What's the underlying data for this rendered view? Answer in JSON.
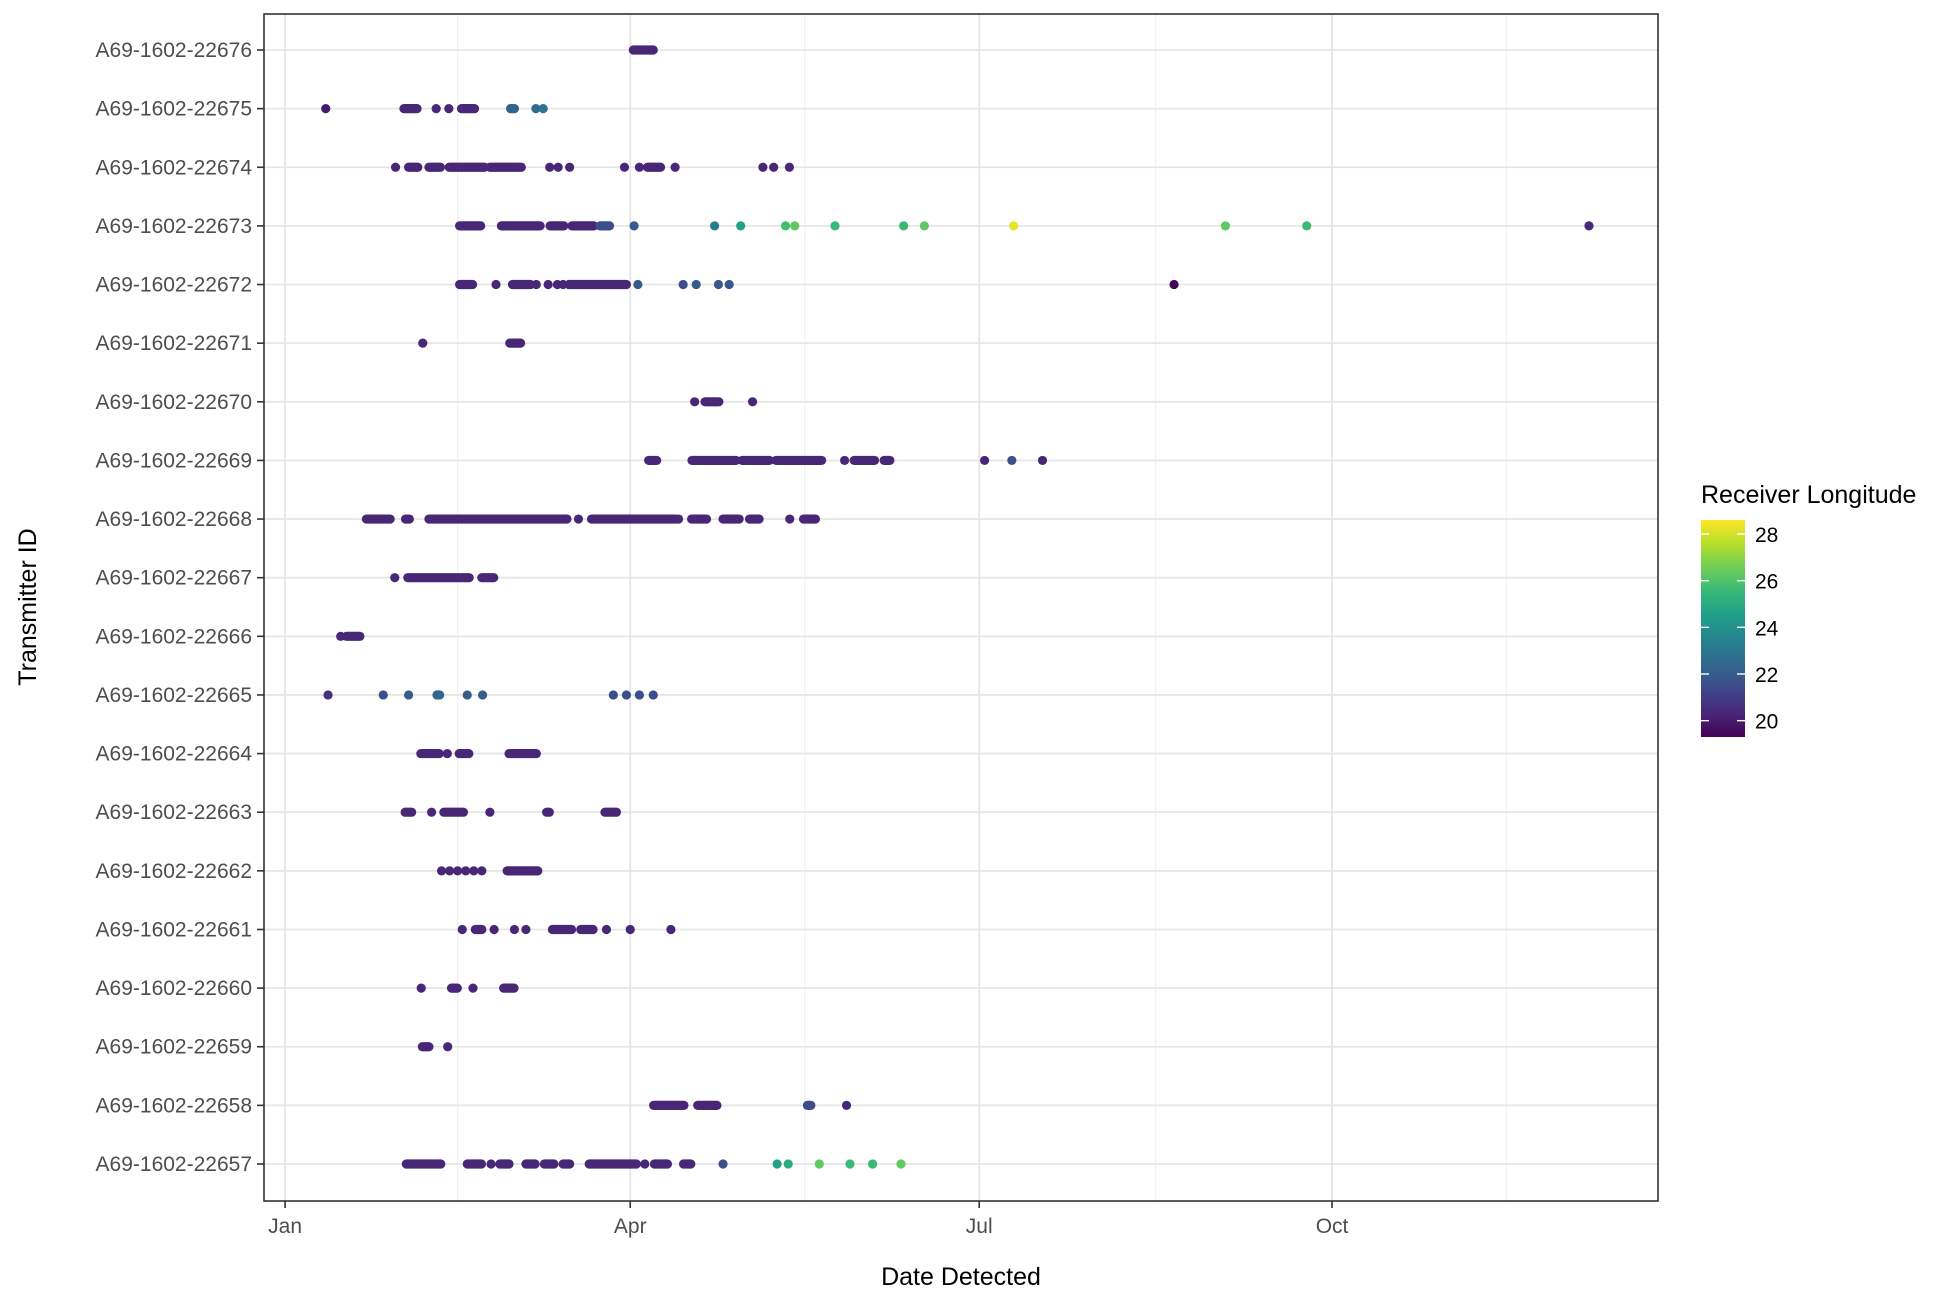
{
  "chart_data": {
    "type": "scatter",
    "xlabel": "Date Detected",
    "ylabel": "Transmitter ID",
    "x_ticks": [
      {
        "label": "Jan",
        "day": 0
      },
      {
        "label": "Apr",
        "day": 90
      },
      {
        "label": "Jul",
        "day": 181
      },
      {
        "label": "Oct",
        "day": 273
      }
    ],
    "x_minor_days": [
      45,
      135.5,
      227,
      318.5
    ],
    "xlim_days": [
      -5.5,
      358
    ],
    "categories": [
      "A69-1602-22676",
      "A69-1602-22675",
      "A69-1602-22674",
      "A69-1602-22673",
      "A69-1602-22672",
      "A69-1602-22671",
      "A69-1602-22670",
      "A69-1602-22669",
      "A69-1602-22668",
      "A69-1602-22667",
      "A69-1602-22666",
      "A69-1602-22665",
      "A69-1602-22664",
      "A69-1602-22663",
      "A69-1602-22662",
      "A69-1602-22661",
      "A69-1602-22660",
      "A69-1602-22659",
      "A69-1602-22658",
      "A69-1602-22657"
    ],
    "legend": {
      "title": "Receiver Longitude",
      "position": "right",
      "ticks": [
        20,
        22,
        24,
        26,
        28
      ],
      "range": [
        19.3,
        28.6
      ],
      "colormap": "viridis"
    },
    "grid": true,
    "points": [
      {
        "id": "A69-1602-22676",
        "pts": [
          [
            96,
            90.8,
            20.3
          ]
        ]
      },
      {
        "id": "A69-1602-22675",
        "pts": [
          [
            10.6,
            20.0
          ],
          [
            31,
            34.4,
            20.3
          ],
          [
            39.4,
            20.3
          ],
          [
            42.7,
            20.3
          ],
          [
            46,
            49.4,
            20.3
          ],
          [
            58.8,
            59.8,
            22.3
          ],
          [
            65.4,
            22.6
          ],
          [
            67.3,
            22.8
          ]
        ]
      },
      {
        "id": "A69-1602-22674",
        "pts": [
          [
            28.8,
            20.3
          ],
          [
            32.2,
            34.6,
            20.3
          ],
          [
            37.5,
            40.5,
            20.3
          ],
          [
            42.8,
            52.0,
            20.3
          ],
          [
            53.4,
            61.6,
            20.3
          ],
          [
            69.0,
            20.3
          ],
          [
            71.2,
            20.3
          ],
          [
            74.2,
            20.3
          ],
          [
            88.5,
            20.3
          ],
          [
            92.4,
            20.3
          ],
          [
            94.5,
            97.9,
            20.3
          ],
          [
            101.7,
            20.3
          ],
          [
            124.6,
            20.3
          ],
          [
            127.4,
            20.3
          ],
          [
            131.5,
            20.3
          ]
        ]
      },
      {
        "id": "A69-1602-22673",
        "pts": [
          [
            45.5,
            51.0,
            20.3
          ],
          [
            56.4,
            66.5,
            20.3
          ],
          [
            69.1,
            72.7,
            20.3
          ],
          [
            74.8,
            80.5,
            20.3
          ],
          [
            82.1,
            84.6,
            21.6
          ],
          [
            91.0,
            22.0
          ],
          [
            112.0,
            23.2
          ],
          [
            118.8,
            24.6
          ],
          [
            130.5,
            25.8
          ],
          [
            132.9,
            26.3
          ],
          [
            143.4,
            25.6
          ],
          [
            161.3,
            25.6
          ],
          [
            166.7,
            26.3
          ],
          [
            190.0,
            28.3
          ],
          [
            245.2,
            26.3
          ],
          [
            266.4,
            25.6
          ],
          [
            340.0,
            20.3
          ]
        ]
      },
      {
        "id": "A69-1602-22672",
        "pts": [
          [
            45.5,
            48.9,
            20.3
          ],
          [
            55.0,
            20.3
          ],
          [
            59.3,
            64.0,
            20.3
          ],
          [
            65.5,
            20.3
          ],
          [
            68.6,
            20.3
          ],
          [
            71.0,
            20.3
          ],
          [
            72.5,
            20.3
          ],
          [
            74.0,
            89.0,
            20.3
          ],
          [
            92.0,
            22.0
          ],
          [
            103.8,
            21.6
          ],
          [
            107.2,
            22.0
          ],
          [
            113.0,
            21.9
          ],
          [
            115.8,
            21.9
          ],
          [
            231.8,
            19.4
          ]
        ]
      },
      {
        "id": "A69-1602-22671",
        "pts": [
          [
            35.9,
            20.3
          ],
          [
            58.6,
            61.4,
            20.3
          ]
        ]
      },
      {
        "id": "A69-1602-22670",
        "pts": [
          [
            106.8,
            20.3
          ],
          [
            109.5,
            113.1,
            20.3
          ],
          [
            121.9,
            20.3
          ]
        ]
      },
      {
        "id": "A69-1602-22669",
        "pts": [
          [
            94.8,
            96.9,
            20.3
          ],
          [
            106.1,
            117.6,
            20.3
          ],
          [
            119.2,
            126.3,
            20.3
          ],
          [
            128.0,
            139.9,
            20.3
          ],
          [
            145.9,
            20.3
          ],
          [
            148.4,
            153.7,
            20.3
          ],
          [
            156.2,
            157.7,
            20.3
          ],
          [
            182.4,
            20.3
          ],
          [
            189.5,
            21.6
          ],
          [
            197.5,
            20.3
          ]
        ]
      },
      {
        "id": "A69-1602-22668",
        "pts": [
          [
            21.2,
            27.4,
            20.3
          ],
          [
            31.4,
            32.4,
            20.3
          ],
          [
            37.5,
            73.5,
            20.3
          ],
          [
            76.5,
            20.3
          ],
          [
            79.9,
            101.9,
            20.3
          ],
          [
            102.6,
            20.3
          ],
          [
            106.0,
            109.9,
            20.3
          ],
          [
            114.2,
            118.4,
            20.3
          ],
          [
            121.1,
            123.6,
            20.3
          ],
          [
            131.6,
            20.3
          ],
          [
            135.2,
            138.3,
            20.3
          ]
        ]
      },
      {
        "id": "A69-1602-22667",
        "pts": [
          [
            28.6,
            20.3
          ],
          [
            32.0,
            48.0,
            20.3
          ],
          [
            51.3,
            54.4,
            20.3
          ]
        ]
      },
      {
        "id": "A69-1602-22666",
        "pts": [
          [
            14.5,
            20.3
          ],
          [
            16,
            19.5,
            20.3
          ]
        ]
      },
      {
        "id": "A69-1602-22665",
        "pts": [
          [
            11.2,
            20.6
          ],
          [
            25.6,
            21.6
          ],
          [
            32.2,
            22.0
          ],
          [
            39.6,
            40.3,
            22.3
          ],
          [
            47.5,
            22.0
          ],
          [
            51.5,
            22.0
          ],
          [
            85.6,
            21.6
          ],
          [
            89.0,
            21.6
          ],
          [
            92.4,
            21.6
          ],
          [
            96.0,
            21.6
          ]
        ]
      },
      {
        "id": "A69-1602-22664",
        "pts": [
          [
            35.4,
            40.2,
            20.3
          ],
          [
            42.3,
            20.3
          ],
          [
            45.4,
            47.9,
            20.3
          ],
          [
            58.4,
            65.5,
            20.3
          ]
        ]
      },
      {
        "id": "A69-1602-22663",
        "pts": [
          [
            31.3,
            33.0,
            20.3
          ],
          [
            38.2,
            20.3
          ],
          [
            41.4,
            46.5,
            20.3
          ],
          [
            53.4,
            20.3
          ],
          [
            68.2,
            68.9,
            20.3
          ],
          [
            83.4,
            86.4,
            20.3
          ]
        ]
      },
      {
        "id": "A69-1602-22662",
        "pts": [
          [
            40.8,
            20.3
          ],
          [
            42.9,
            20.3
          ],
          [
            45.0,
            20.3
          ],
          [
            47.1,
            20.3
          ],
          [
            49.2,
            20.3
          ],
          [
            51.3,
            20.3
          ],
          [
            57.9,
            65.9,
            20.3
          ]
        ]
      },
      {
        "id": "A69-1602-22661",
        "pts": [
          [
            46.2,
            20.3
          ],
          [
            49.6,
            51.3,
            20.3
          ],
          [
            54.5,
            20.3
          ],
          [
            59.8,
            20.3
          ],
          [
            62.8,
            20.3
          ],
          [
            69.7,
            74.7,
            20.3
          ],
          [
            77.1,
            80.3,
            20.3
          ],
          [
            83.8,
            20.3
          ],
          [
            90.0,
            20.3
          ],
          [
            100.6,
            20.3
          ]
        ]
      },
      {
        "id": "A69-1602-22660",
        "pts": [
          [
            35.5,
            20.3
          ],
          [
            43.4,
            44.9,
            20.3
          ],
          [
            49.0,
            20.3
          ],
          [
            57.0,
            59.7,
            20.3
          ]
        ]
      },
      {
        "id": "A69-1602-22659",
        "pts": [
          [
            35.8,
            37.5,
            20.3
          ],
          [
            42.4,
            20.3
          ]
        ]
      },
      {
        "id": "A69-1602-22658",
        "pts": [
          [
            96.1,
            104.0,
            20.3
          ],
          [
            107.6,
            112.6,
            20.3
          ],
          [
            136.2,
            137.1,
            21.4
          ],
          [
            146.4,
            20.3
          ]
        ]
      },
      {
        "id": "A69-1602-22657",
        "pts": [
          [
            31.6,
            40.6,
            20.3
          ],
          [
            47.5,
            51.2,
            20.3
          ],
          [
            53.7,
            20.3
          ],
          [
            56.0,
            58.4,
            20.3
          ],
          [
            62.8,
            65.2,
            20.3
          ],
          [
            67.6,
            70.1,
            20.3
          ],
          [
            72.5,
            74.2,
            20.3
          ],
          [
            79.3,
            91.6,
            20.3
          ],
          [
            93.8,
            20.3
          ],
          [
            96.3,
            99.7,
            20.3
          ],
          [
            103.9,
            105.8,
            20.3
          ],
          [
            114.2,
            21.6
          ],
          [
            128.3,
            24.6
          ],
          [
            131.2,
            25.0
          ],
          [
            139.3,
            26.3
          ],
          [
            147.3,
            25.6
          ],
          [
            153.2,
            25.6
          ],
          [
            160.6,
            26.3
          ]
        ]
      }
    ]
  }
}
